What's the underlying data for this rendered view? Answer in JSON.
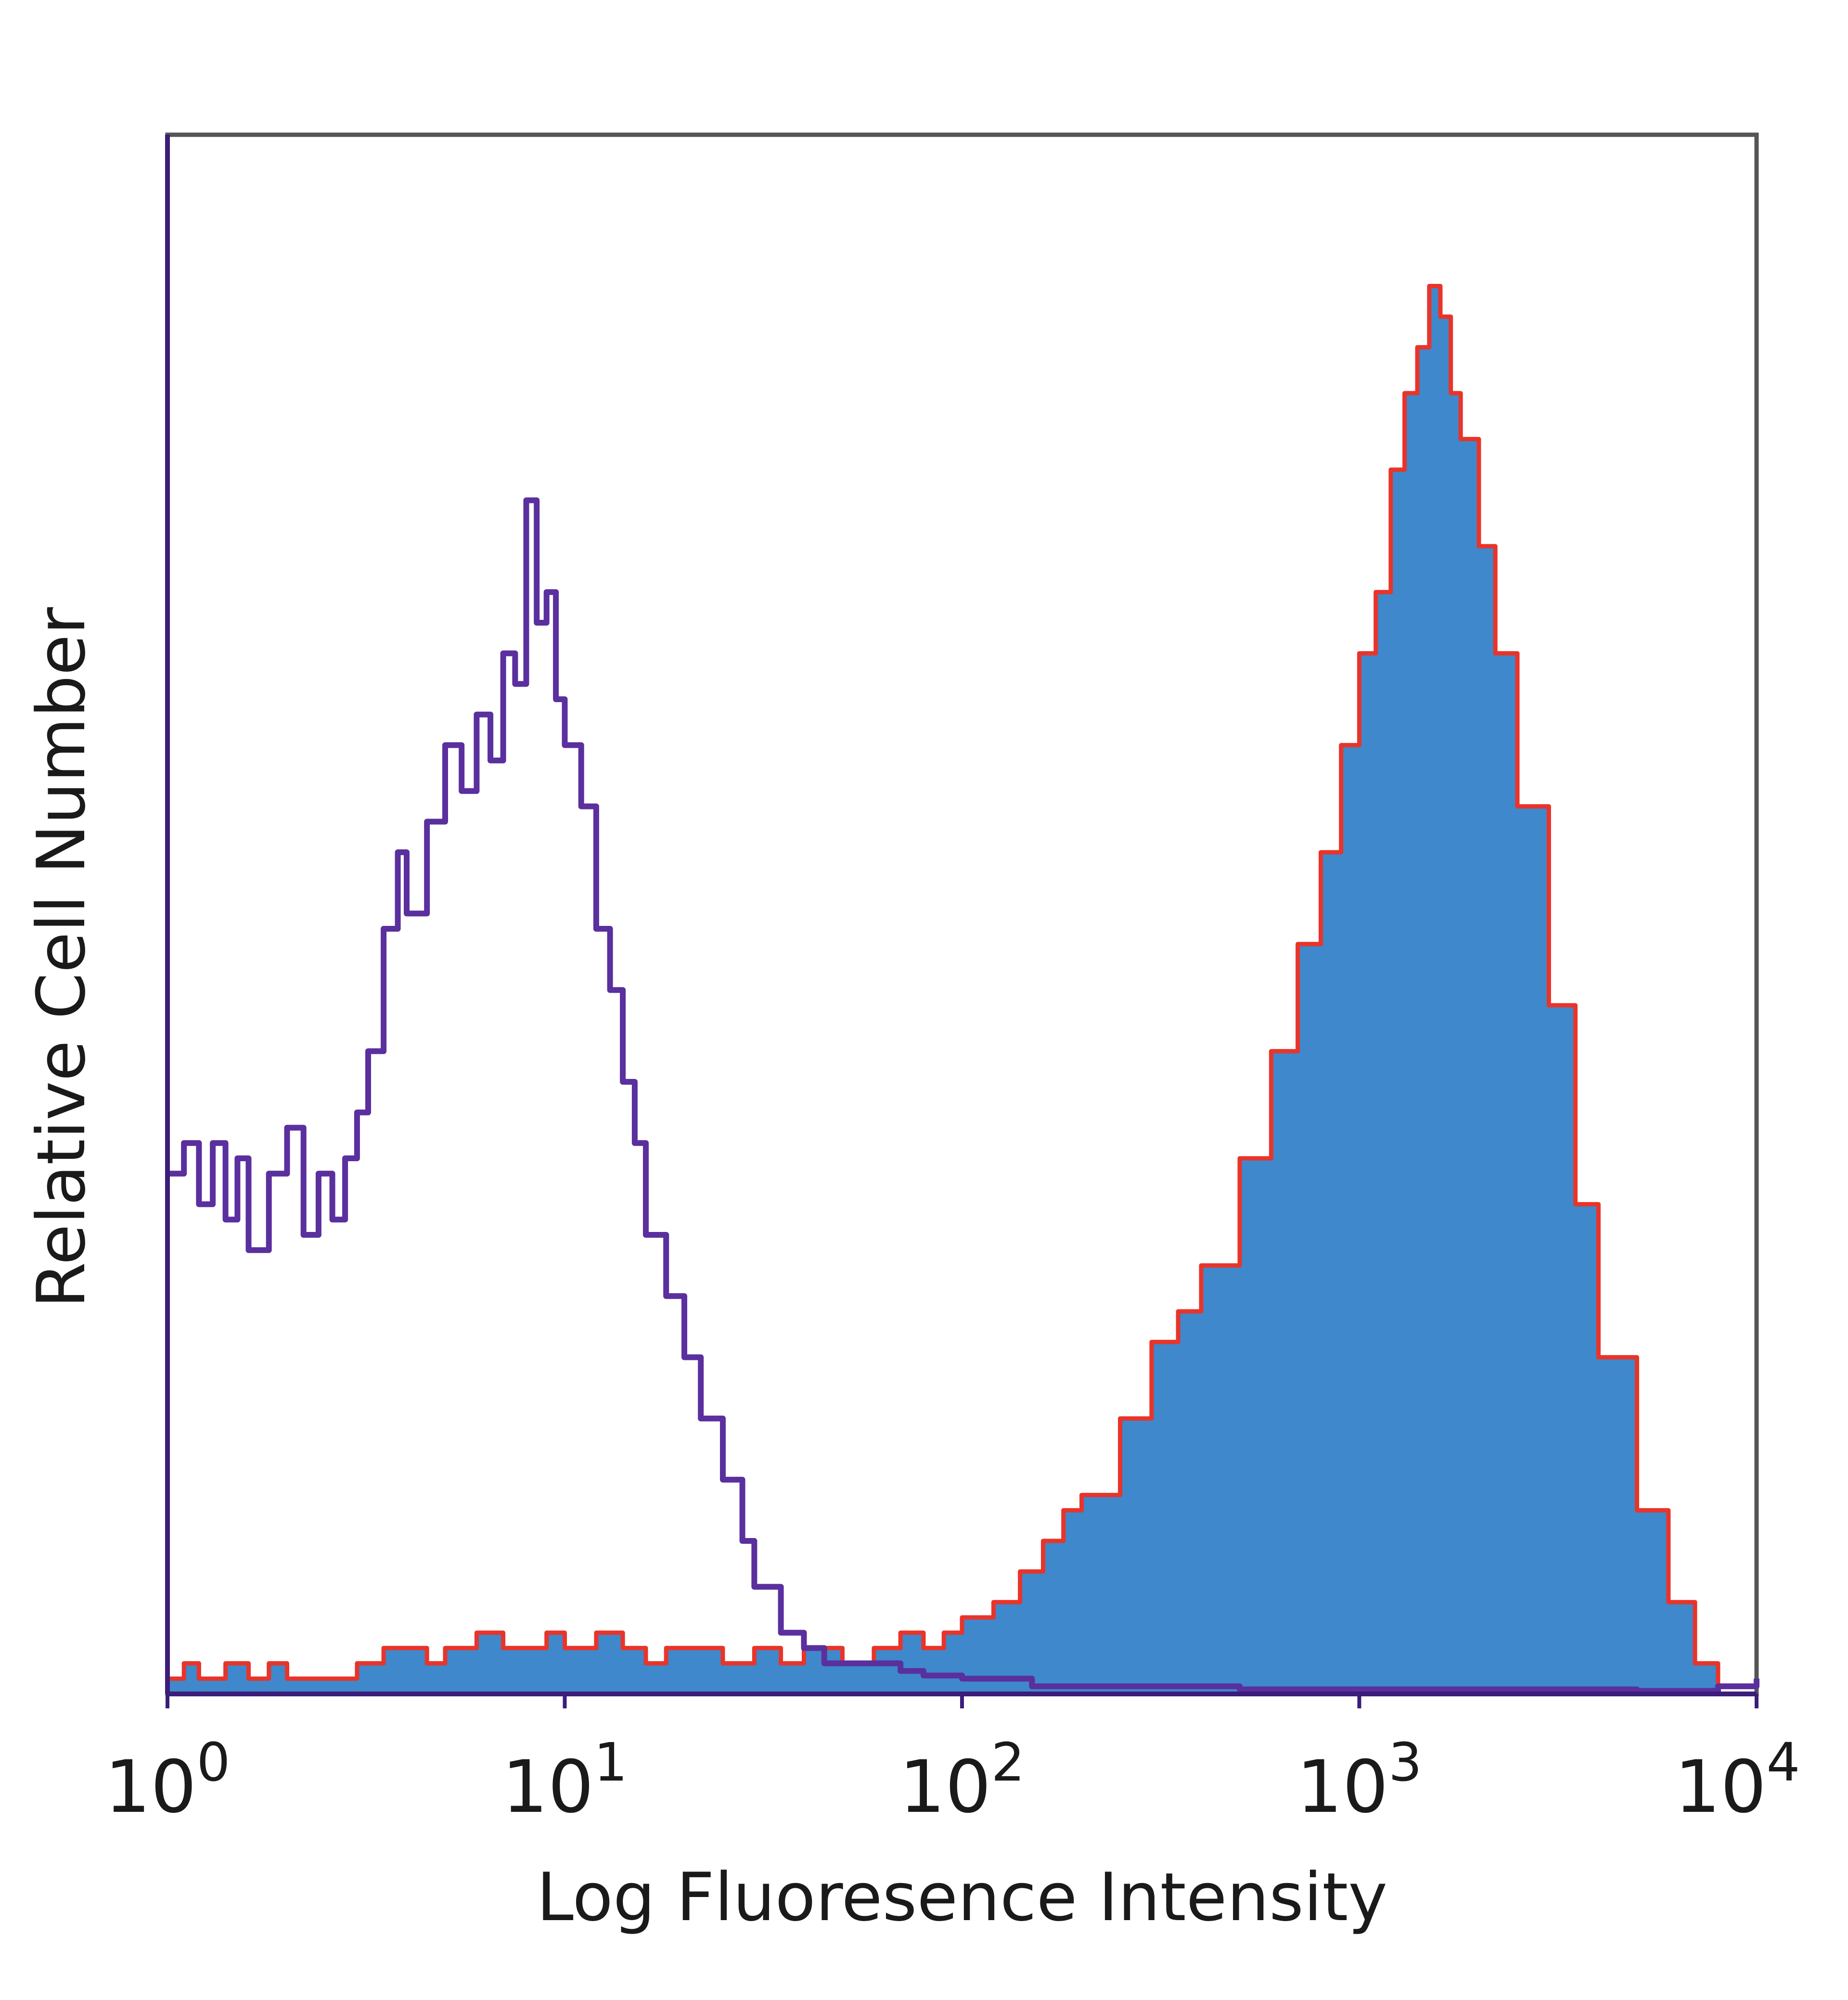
{
  "chart_data": {
    "type": "area",
    "title": "",
    "xlabel": "Log Fluoresence Intensity",
    "ylabel": "Relative Cell Number",
    "x_scale": "log",
    "xlim": [
      1,
      10000
    ],
    "ylim": [
      0,
      100
    ],
    "grid": false,
    "legend": "none",
    "x_ticks": [
      {
        "value": 1,
        "base": "10",
        "exp": "0"
      },
      {
        "value": 10,
        "base": "10",
        "exp": "1"
      },
      {
        "value": 100,
        "base": "10",
        "exp": "2"
      },
      {
        "value": 1000,
        "base": "10",
        "exp": "3"
      },
      {
        "value": 10000,
        "base": "10",
        "exp": "4"
      }
    ],
    "series": [
      {
        "style": "filled",
        "fill_color": "#3f88cb",
        "line_color": "#e8342a",
        "x": [
          1.0,
          1.1,
          1.2,
          1.4,
          1.6,
          1.8,
          2.0,
          2.3,
          2.6,
          3.0,
          3.5,
          4.0,
          4.5,
          5.0,
          6.0,
          7.0,
          8.0,
          9.0,
          10.0,
          12.0,
          14.0,
          16.0,
          18.0,
          20.0,
          25.0,
          30.0,
          35.0,
          40.0,
          50.0,
          60.0,
          70.0,
          80.0,
          90.0,
          100.0,
          120.0,
          140.0,
          160.0,
          180.0,
          200.0,
          250.0,
          300.0,
          350.0,
          400.0,
          500.0,
          600.0,
          700.0,
          800.0,
          900.0,
          1000.0,
          1100.0,
          1200.0,
          1300.0,
          1400.0,
          1500.0,
          1600.0,
          1700.0,
          1800.0,
          2000.0,
          2200.0,
          2500.0,
          3000.0,
          3500.0,
          4000.0,
          5000.0,
          6000.0,
          7000.0,
          8000.0
        ],
        "values": [
          1,
          2,
          1,
          2,
          1,
          2,
          1,
          1,
          1,
          2,
          3,
          3,
          2,
          3,
          4,
          3,
          3,
          4,
          3,
          4,
          3,
          2,
          3,
          3,
          2,
          3,
          2,
          3,
          2,
          3,
          4,
          3,
          4,
          5,
          6,
          8,
          10,
          12,
          13,
          18,
          23,
          25,
          28,
          35,
          42,
          49,
          55,
          62,
          68,
          72,
          80,
          85,
          88,
          92,
          90,
          85,
          82,
          75,
          68,
          58,
          45,
          32,
          22,
          12,
          6,
          2,
          0.5
        ]
      },
      {
        "style": "outline",
        "line_color": "#5a2f9e",
        "x": [
          1.0,
          1.1,
          1.2,
          1.3,
          1.4,
          1.5,
          1.6,
          1.8,
          2.0,
          2.2,
          2.4,
          2.6,
          2.8,
          3.0,
          3.2,
          3.5,
          3.8,
          4.0,
          4.5,
          5.0,
          5.5,
          6.0,
          6.5,
          7.0,
          7.5,
          8.0,
          8.5,
          9.0,
          9.5,
          10.0,
          11.0,
          12.0,
          13.0,
          14.0,
          15.0,
          16.0,
          18.0,
          20.0,
          22.0,
          25.0,
          28.0,
          30.0,
          35.0,
          40.0,
          45.0,
          50.0,
          60.0,
          70.0,
          80.0,
          100.0,
          150.0,
          200.0,
          500.0,
          1000.0,
          2000.0,
          5000.0,
          8000.0,
          10000.0
        ],
        "values": [
          34,
          36,
          32,
          36,
          31,
          35,
          29,
          34,
          37,
          30,
          34,
          31,
          35,
          38,
          42,
          50,
          55,
          51,
          57,
          62,
          59,
          64,
          61,
          68,
          66,
          78,
          70,
          72,
          65,
          62,
          58,
          50,
          46,
          40,
          36,
          30,
          26,
          22,
          18,
          14,
          10,
          7,
          4,
          3,
          2,
          2,
          2,
          1.5,
          1.2,
          1,
          0.5,
          0.5,
          0.3,
          0.3,
          0.3,
          0.2,
          0.5,
          1
        ]
      }
    ]
  }
}
